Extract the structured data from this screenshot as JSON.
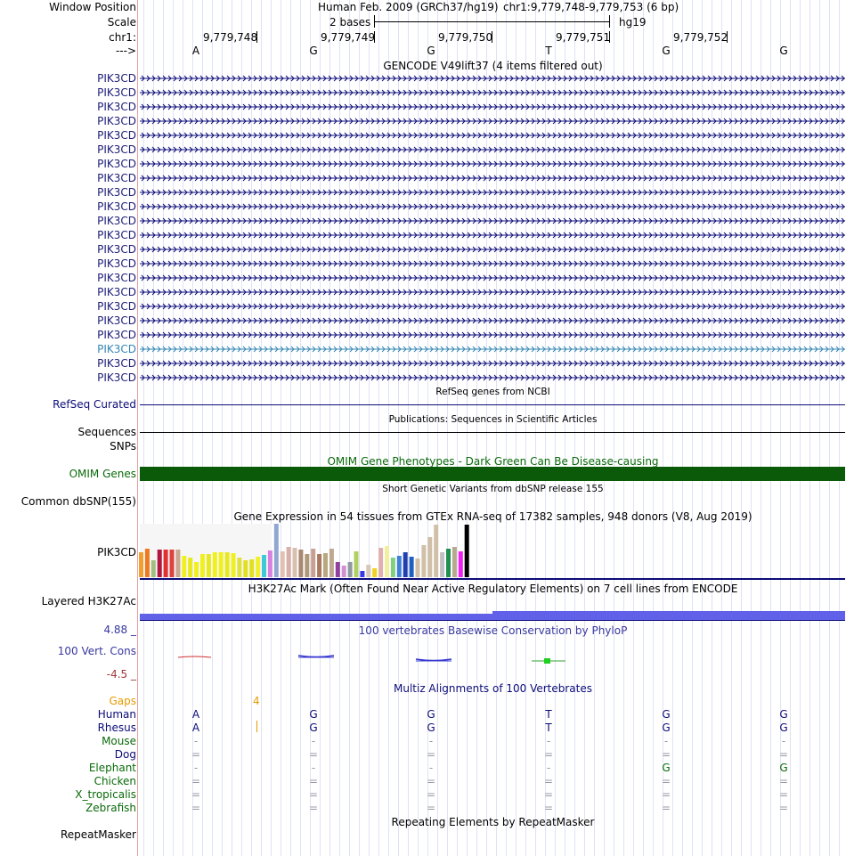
{
  "labels": {
    "window_position": "Window Position",
    "scale": "Scale",
    "chrom": "chr1:",
    "strand": "--->"
  },
  "header": {
    "assembly_text": "Human Feb. 2009 (GRCh37/hg19)",
    "position_text": "chr1:9,779,748-9,779,753 (6 bp)",
    "scale_text": "2 bases",
    "db": "hg19"
  },
  "ruler": {
    "positions": [
      "9,779,748",
      "9,779,749",
      "9,779,750",
      "9,779,751",
      "9,779,752"
    ],
    "bases": [
      "A",
      "G",
      "G",
      "T",
      "G",
      "G"
    ]
  },
  "tracks": {
    "gencode": {
      "title": "GENCODE V49lift37 (4 items filtered out)",
      "items": [
        "PIK3CD",
        "PIK3CD",
        "PIK3CD",
        "PIK3CD",
        "PIK3CD",
        "PIK3CD",
        "PIK3CD",
        "PIK3CD",
        "PIK3CD",
        "PIK3CD",
        "PIK3CD",
        "PIK3CD",
        "PIK3CD",
        "PIK3CD",
        "PIK3CD",
        "PIK3CD",
        "PIK3CD",
        "PIK3CD",
        "PIK3CD",
        "PIK3CD",
        "PIK3CD",
        "PIK3CD"
      ],
      "color": "#0c0c78",
      "selected_color": "#3586b4"
    },
    "refseq": {
      "title": "RefSeq genes from NCBI",
      "label": "RefSeq Curated"
    },
    "publications": {
      "title": "Publications: Sequences in Scientific Articles",
      "label": "Sequences"
    },
    "snps": {
      "label": "SNPs"
    },
    "omim": {
      "title": "OMIM Gene Phenotypes - Dark Green Can Be Disease-causing",
      "label": "OMIM Genes",
      "color": "#0a5a0a"
    },
    "dbsnp": {
      "title": "Short Genetic Variants from dbSNP release 155",
      "label": "Common dbSNP(155)"
    },
    "gtex": {
      "title": "Gene Expression in 54 tissues from GTEx RNA-seq of 17382 samples, 948 donors (V8, Aug 2019)",
      "label": "PIK3CD",
      "values": [
        0.47,
        0.53,
        0.31,
        0.52,
        0.51,
        0.51,
        0.51,
        0.4,
        0.36,
        0.28,
        0.43,
        0.43,
        0.47,
        0.47,
        0.47,
        0.45,
        0.37,
        0.31,
        0.34,
        0.39,
        0.41,
        0.5,
        1.0,
        0.48,
        0.57,
        0.55,
        0.51,
        0.44,
        0.54,
        0.44,
        0.45,
        0.53,
        0.28,
        0.22,
        0.29,
        0.48,
        0.12,
        0.24,
        0.17,
        0.55,
        0.59,
        0.36,
        0.4,
        0.47,
        0.38,
        0.35,
        0.6,
        0.75,
        0.98,
        0.47,
        0.53,
        0.56,
        0.48,
        0.98
      ],
      "colors": [
        "#f0a030",
        "#f07820",
        "#a0c080",
        "#b01840",
        "#e03030",
        "#e04040",
        "#c8a890",
        "#f0f020",
        "#e8e820",
        "#f0f020",
        "#f0f020",
        "#e8e820",
        "#f0f020",
        "#f0f020",
        "#e8e820",
        "#f0f020",
        "#e0e040",
        "#e0e020",
        "#e0e020",
        "#f0f030",
        "#40c8d8",
        "#d880e0",
        "#90a8d0",
        "#e0c0b0",
        "#d8b0a8",
        "#d8c0b0",
        "#a88870",
        "#b09878",
        "#c8a090",
        "#a87860",
        "#b8a880",
        "#c0a890",
        "#9040a0",
        "#d090d0",
        "#9098a0",
        "#b0d060",
        "#3838e8",
        "#d8c8b8",
        "#f0d020",
        "#e0b0b0",
        "#f0f0a0",
        "#80d080",
        "#4080d8",
        "#2040b0",
        "#2060c0",
        "#d0c0a8",
        "#d0c0a8",
        "#d0c0a8",
        "#d0c0a8",
        "#c0c0c0",
        "#209050",
        "#b8a890",
        "#f020f0",
        "#000000"
      ]
    },
    "h3k27ac": {
      "title": "H3K27Ac Mark (Often Found Near Active Regulatory Elements) on 7 cell lines from ENCODE",
      "label": "Layered H3K27Ac",
      "color": "#6060e8"
    },
    "phylop": {
      "title": "100 vertebrates Basewise Conservation by PhyloP",
      "label": "100 Vert. Cons",
      "max": "4.88 _",
      "min": "-4.5 _"
    },
    "multiz": {
      "title": "Multiz Alignments of 100 Vertebrates",
      "gaps_label": "Gaps",
      "gap_count": "4",
      "species": [
        {
          "name": "Human",
          "bases": [
            "A",
            "G",
            "G",
            "T",
            "G",
            "G"
          ],
          "color": "#0c0c78"
        },
        {
          "name": "Rhesus",
          "bases": [
            "A",
            "G",
            "G",
            "T",
            "G",
            "G"
          ],
          "color": "#0c0c78"
        },
        {
          "name": "Mouse",
          "bases": [
            "-",
            "-",
            "-",
            "-",
            "-",
            "-"
          ],
          "color": "#0a6a0a"
        },
        {
          "name": "Dog",
          "bases": [
            "=",
            "=",
            "=",
            "=",
            "=",
            "="
          ],
          "color": "#0c0c78"
        },
        {
          "name": "Elephant",
          "bases": [
            "-",
            "-",
            "-",
            "-",
            "G",
            "G"
          ],
          "color": "#0a6a0a"
        },
        {
          "name": "Chicken",
          "bases": [
            "=",
            "=",
            "=",
            "=",
            "=",
            "="
          ],
          "color": "#0a6a0a"
        },
        {
          "name": "X_tropicalis",
          "bases": [
            "=",
            "=",
            "=",
            "=",
            "=",
            "="
          ],
          "color": "#0a6a0a"
        },
        {
          "name": "Zebrafish",
          "bases": [
            "=",
            "=",
            "=",
            "=",
            "=",
            "="
          ],
          "color": "#0a6a0a"
        }
      ]
    },
    "repeatmasker": {
      "title": "Repeating Elements by RepeatMasker",
      "label": "RepeatMasker"
    }
  }
}
